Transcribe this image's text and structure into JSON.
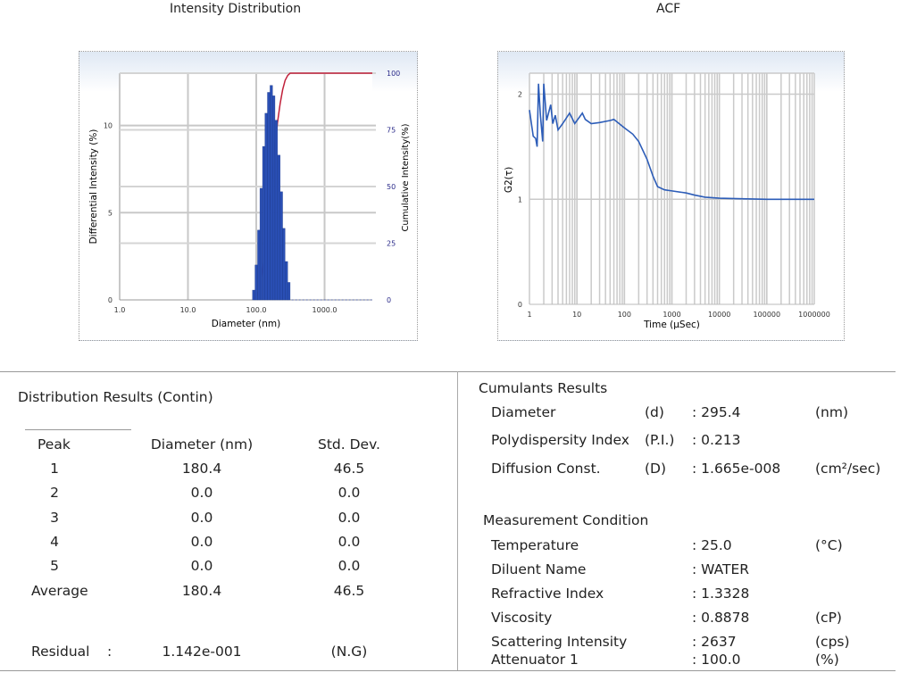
{
  "titles": {
    "intensity": "Intensity Distribution",
    "acf": "ACF"
  },
  "chart_data": [
    {
      "type": "bar",
      "title": "Intensity Distribution",
      "xlabel": "Diameter (nm)",
      "ylabel": "Differential Intensity (%)",
      "y2label": "Cumulative Intensity(%)",
      "x_scale": "log",
      "xlim": [
        1,
        5000
      ],
      "ylim": [
        0,
        13
      ],
      "y2lim": [
        0,
        100
      ],
      "x_ticks": [
        "1.0",
        "10.0",
        "100.0",
        "1000.0"
      ],
      "y_ticks": [
        "0",
        "5",
        "10"
      ],
      "y2_ticks": [
        "0",
        "25",
        "50",
        "75",
        "100"
      ],
      "grid": true,
      "colors": {
        "bars": "#2a4fb5",
        "cumulative": "#c0203a",
        "y2_ticks": "#2b2b8a"
      },
      "diameters": [
        92,
        100,
        109,
        118,
        129,
        140,
        152,
        166,
        180,
        196,
        214,
        233,
        253,
        276,
        300
      ],
      "values": [
        0.56,
        2.0,
        4.0,
        6.4,
        8.8,
        10.7,
        11.9,
        12.3,
        11.7,
        10.3,
        8.3,
        6.2,
        4.1,
        2.2,
        1.0
      ]
    },
    {
      "type": "line",
      "title": "ACF",
      "xlabel": "Time (µSec)",
      "ylabel": "G2(τ)",
      "x_scale": "log",
      "xlim": [
        1,
        1000000
      ],
      "ylim": [
        0,
        2.2
      ],
      "x_ticks": [
        "1",
        "10",
        "100",
        "1000",
        "10000",
        "100000",
        "1000000"
      ],
      "y_ticks": [
        "0",
        "1",
        "2"
      ],
      "grid": true,
      "colors": {
        "line": "#2d5db8"
      },
      "x": [
        1,
        1.2,
        1.35,
        1.45,
        1.55,
        1.7,
        1.9,
        2.0,
        2.3,
        2.8,
        3.1,
        3.5,
        4,
        5,
        7,
        9,
        13,
        15,
        20,
        30,
        50,
        60,
        100,
        150,
        200,
        300,
        400,
        500,
        700,
        1000,
        2000,
        3000,
        5000,
        10000,
        30000,
        100000,
        1000000
      ],
      "y": [
        1.85,
        1.6,
        1.58,
        1.5,
        2.1,
        1.8,
        1.55,
        2.1,
        1.75,
        1.9,
        1.72,
        1.8,
        1.66,
        1.72,
        1.82,
        1.72,
        1.82,
        1.76,
        1.72,
        1.73,
        1.75,
        1.76,
        1.68,
        1.62,
        1.55,
        1.38,
        1.22,
        1.12,
        1.09,
        1.08,
        1.06,
        1.04,
        1.02,
        1.01,
        1.005,
        1.0,
        1.0
      ]
    }
  ],
  "distribution": {
    "title": "Distribution Results (Contin)",
    "headers": [
      "Peak",
      "Diameter (nm)",
      "Std. Dev."
    ],
    "rows": [
      [
        "1",
        "180.4",
        "46.5"
      ],
      [
        "2",
        "0.0",
        "0.0"
      ],
      [
        "3",
        "0.0",
        "0.0"
      ],
      [
        "4",
        "0.0",
        "0.0"
      ],
      [
        "5",
        "0.0",
        "0.0"
      ],
      [
        "Average",
        "180.4",
        "46.5"
      ]
    ],
    "residual": {
      "label": "Residual",
      "sep": ":",
      "value": "1.142e-001",
      "status": "(N.G)"
    }
  },
  "cumulants": {
    "title": "Cumulants Results",
    "rows": [
      {
        "label": "Diameter",
        "sym": "(d)",
        "value": ": 295.4",
        "unit": "(nm)"
      },
      {
        "label": "Polydispersity Index",
        "sym": "(P.I.)",
        "value": ": 0.213",
        "unit": ""
      },
      {
        "label": "Diffusion Const.",
        "sym": "(D)",
        "value": ": 1.665e-008",
        "unit": "(cm²/sec)"
      }
    ]
  },
  "measurement": {
    "title": "Measurement Condition",
    "rows": [
      {
        "label": "Temperature",
        "value": ": 25.0",
        "unit": "(°C)"
      },
      {
        "label": "Diluent Name",
        "value": ": WATER",
        "unit": ""
      },
      {
        "label": "Refractive Index",
        "value": ": 1.3328",
        "unit": ""
      },
      {
        "label": "Viscosity",
        "value": ": 0.8878",
        "unit": "(cP)"
      },
      {
        "label": "Scattering Intensity",
        "value": ": 2637",
        "unit": "(cps)"
      },
      {
        "label": "Attenuator 1",
        "value": ": 100.0",
        "unit": "(%)"
      }
    ]
  }
}
